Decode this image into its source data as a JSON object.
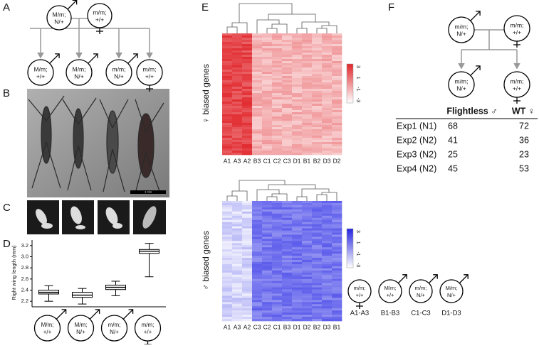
{
  "panel_labels": [
    "A",
    "B",
    "C",
    "D",
    "E",
    "F"
  ],
  "panel_a": {
    "parents": [
      {
        "line1": "M/m;",
        "line2": "N/+",
        "sex": "male"
      },
      {
        "line1": "m/m;",
        "line2": "+/+",
        "sex": "female"
      }
    ],
    "offspring": [
      {
        "line1": "M/m;",
        "line2": "+/+",
        "sex": "male"
      },
      {
        "line1": "M/m;",
        "line2": "N/+",
        "sex": "male"
      },
      {
        "line1": "m/m;",
        "line2": "N/+",
        "sex": "male"
      },
      {
        "line1": "m/m;",
        "line2": "+/+",
        "sex": "female"
      }
    ]
  },
  "panel_b": {
    "scale_bar": "1 mm"
  },
  "chart_data": {
    "type": "box",
    "ylabel": "Right wing length (mm)",
    "categories": [
      {
        "line1": "M/m;",
        "line2": "+/+",
        "sex": "male"
      },
      {
        "line1": "M/m;",
        "line2": "N/+",
        "sex": "male"
      },
      {
        "line1": "m/m;",
        "line2": "N/+",
        "sex": "male"
      },
      {
        "line1": "m/m;",
        "line2": "+/+",
        "sex": "female"
      }
    ],
    "boxes": [
      {
        "low": 2.2,
        "q1": 2.33,
        "median": 2.36,
        "q3": 2.4,
        "high": 2.48
      },
      {
        "low": 2.15,
        "q1": 2.27,
        "median": 2.31,
        "q3": 2.36,
        "high": 2.43
      },
      {
        "low": 2.3,
        "q1": 2.41,
        "median": 2.45,
        "q3": 2.49,
        "high": 2.56
      },
      {
        "low": 2.64,
        "q1": 3.06,
        "median": 3.1,
        "q3": 3.13,
        "high": 3.24
      }
    ],
    "ylim": [
      2.1,
      3.3
    ],
    "yticks": [
      2.2,
      2.4,
      2.6,
      2.8,
      {
        "value": 3,
        "label": "3.0"
      },
      3.2
    ]
  },
  "panel_e": {
    "top": {
      "ylabel": "♀ biased genes",
      "columns": [
        "A1",
        "A3",
        "A2",
        "B3",
        "C1",
        "C2",
        "C3",
        "D1",
        "B1",
        "B2",
        "D3",
        "D2"
      ],
      "colorbar_ticks": [
        3,
        1,
        -1,
        -3
      ]
    },
    "bottom": {
      "ylabel": "♂ biased genes",
      "columns": [
        "A1",
        "A3",
        "A2",
        "C3",
        "C2",
        "C1",
        "B3",
        "D1",
        "D2",
        "B2",
        "D3",
        "B1"
      ],
      "colorbar_ticks": [
        3,
        1,
        -1,
        -3
      ]
    },
    "legend": [
      {
        "line1": "m/m;",
        "line2": "+/+",
        "sex": "female",
        "label": "A1-A3"
      },
      {
        "line1": "M/m;",
        "line2": "+/+",
        "sex": "male",
        "label": "B1-B3"
      },
      {
        "line1": "m/m;",
        "line2": "N/+",
        "sex": "male",
        "label": "C1-C3"
      },
      {
        "line1": "M/m;",
        "line2": "N/+",
        "sex": "male",
        "label": "D1-D3"
      }
    ]
  },
  "panel_f": {
    "parents": [
      {
        "line1": "m/m;",
        "line2": "N/+",
        "sex": "male"
      },
      {
        "line1": "m/m;",
        "line2": "+/+",
        "sex": "female"
      }
    ],
    "offspring": [
      {
        "line1": "m/m;",
        "line2": "N/+",
        "sex": "male"
      },
      {
        "line1": "m/m;",
        "line2": "+/+",
        "sex": "female"
      }
    ],
    "table": {
      "header": [
        "Flightless ♂",
        "WT ♀"
      ],
      "rows": [
        [
          "Exp1 (N1)",
          68,
          72
        ],
        [
          "Exp2 (N2)",
          41,
          36
        ],
        [
          "Exp3 (N2)",
          25,
          23
        ],
        [
          "Exp4 (N2)",
          45,
          53
        ]
      ]
    }
  }
}
